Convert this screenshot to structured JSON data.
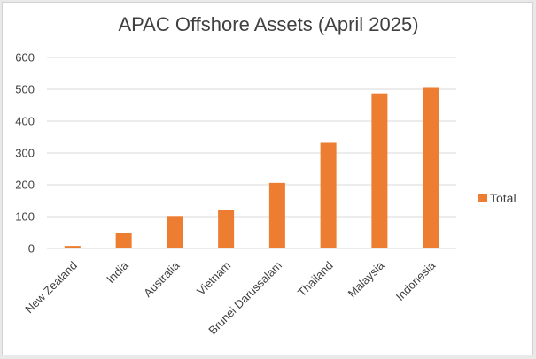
{
  "chart_data": {
    "type": "bar",
    "title": "APAC Offshore Assets (April 2025)",
    "xlabel": "",
    "ylabel": "",
    "categories": [
      "New Zealand",
      "India",
      "Australia",
      "Vietnam",
      "Brunei Darussalam",
      "Thailand",
      "Malaysia",
      "Indonesia"
    ],
    "series": [
      {
        "name": "Total",
        "values": [
          8,
          48,
          102,
          122,
          206,
          332,
          487,
          507
        ]
      }
    ],
    "ylim": [
      0,
      600
    ],
    "yticks": [
      0,
      100,
      200,
      300,
      400,
      500,
      600
    ],
    "grid": true,
    "legend_position": "right",
    "bar_color": "#ED7D31",
    "grid_color": "#d9d9d9",
    "text_color": "#404040"
  }
}
